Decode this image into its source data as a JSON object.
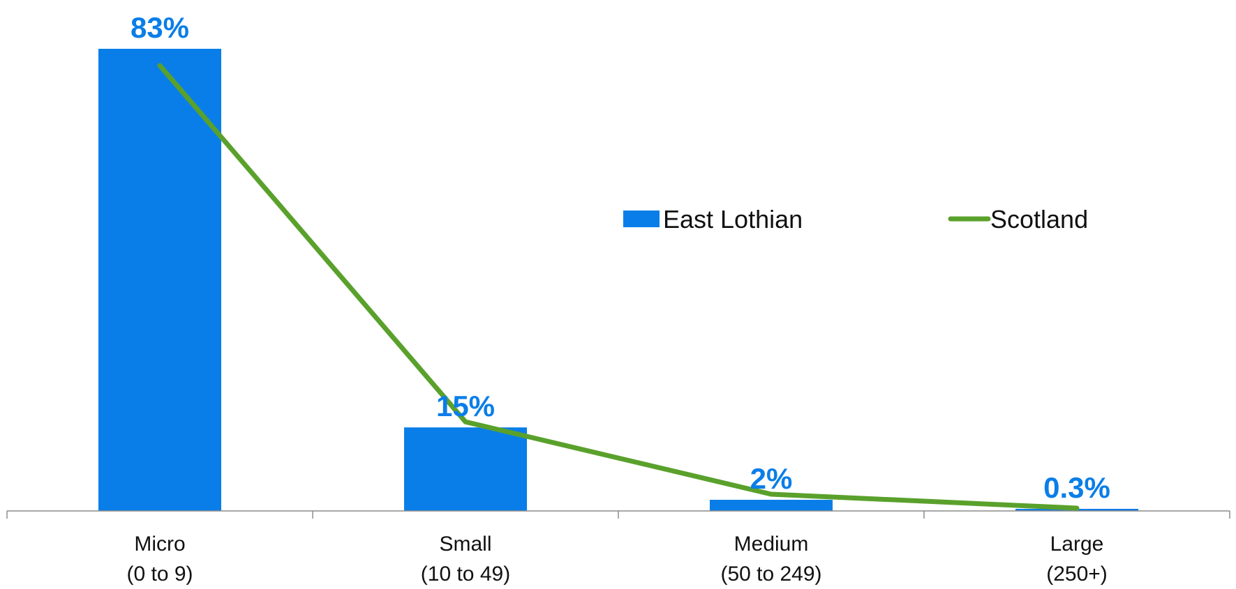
{
  "chart_data": {
    "type": "bar",
    "categories": [
      [
        "Micro",
        "(0 to 9)"
      ],
      [
        "Small",
        "(10 to 49)"
      ],
      [
        "Medium",
        "(50 to 249)"
      ],
      [
        "Large",
        "(250+)"
      ]
    ],
    "series": [
      {
        "name": "East Lothian",
        "kind": "bar",
        "color": "#0a7ee8",
        "values": [
          83,
          15,
          2,
          0.3
        ],
        "labels": [
          "83%",
          "15%",
          "2%",
          "0.3%"
        ]
      },
      {
        "name": "Scotland",
        "kind": "line",
        "color": "#5aa12c",
        "values": [
          80,
          16,
          3,
          0.5
        ]
      }
    ],
    "ylim": [
      0,
      90
    ],
    "grid": false,
    "legend": "center-right",
    "title": "",
    "xlabel": "",
    "ylabel": ""
  }
}
